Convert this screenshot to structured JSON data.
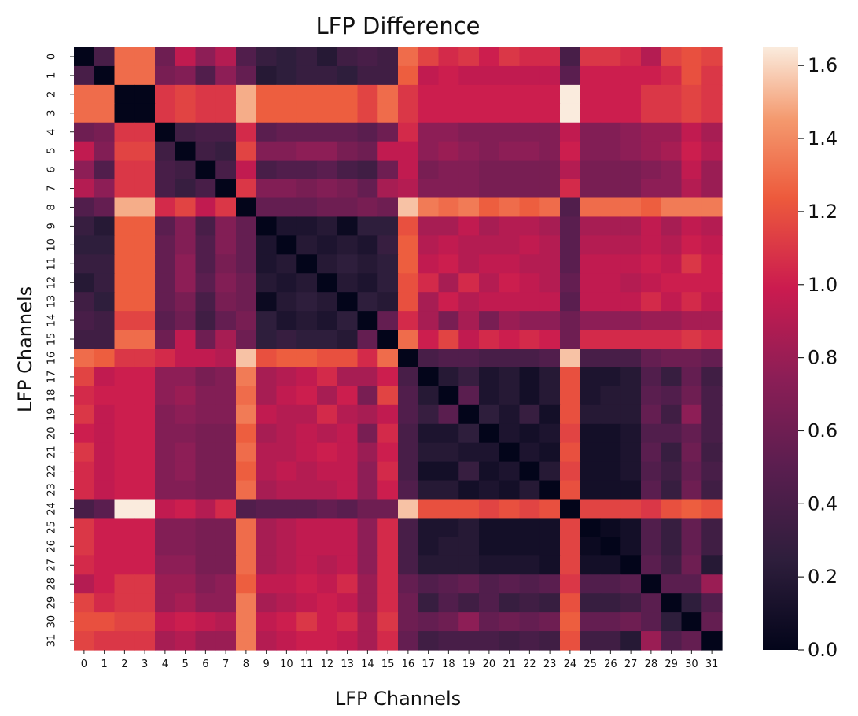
{
  "chart_data": {
    "type": "heatmap",
    "title": "LFP Difference",
    "xlabel": "LFP Channels",
    "ylabel": "LFP Channels",
    "colormap": "rocket",
    "vmin": 0.0,
    "vmax": 1.65,
    "colorbar_ticks": [
      "0.0",
      "0.2",
      "0.4",
      "0.6",
      "0.8",
      "1.0",
      "1.2",
      "1.4",
      "1.6"
    ],
    "colorbar_values": [
      0.0,
      0.2,
      0.4,
      0.6,
      0.8,
      1.0,
      1.2,
      1.4,
      1.6
    ],
    "x_ticks": [
      "0",
      "1",
      "2",
      "3",
      "4",
      "5",
      "6",
      "7",
      "8",
      "9",
      "10",
      "11",
      "12",
      "13",
      "14",
      "15",
      "16",
      "17",
      "18",
      "19",
      "20",
      "21",
      "22",
      "23",
      "24",
      "25",
      "26",
      "27",
      "28",
      "29",
      "30",
      "31"
    ],
    "y_ticks": [
      "0",
      "1",
      "2",
      "3",
      "4",
      "5",
      "6",
      "7",
      "8",
      "9",
      "10",
      "11",
      "12",
      "13",
      "14",
      "15",
      "16",
      "17",
      "18",
      "19",
      "20",
      "21",
      "22",
      "23",
      "24",
      "25",
      "26",
      "27",
      "28",
      "29",
      "30",
      "31"
    ],
    "matrix": [
      [
        0.0,
        0.4,
        1.3,
        1.3,
        0.6,
        0.95,
        0.75,
        0.9,
        0.45,
        0.3,
        0.25,
        0.3,
        0.2,
        0.35,
        0.4,
        0.35,
        1.3,
        1.15,
        1.05,
        1.1,
        1.0,
        1.1,
        1.05,
        1.05,
        0.4,
        1.1,
        1.1,
        1.05,
        0.9,
        1.15,
        1.2,
        1.15
      ],
      [
        0.4,
        0.0,
        1.3,
        1.3,
        0.65,
        0.7,
        0.45,
        0.75,
        0.55,
        0.2,
        0.25,
        0.3,
        0.3,
        0.25,
        0.35,
        0.35,
        1.25,
        0.95,
        1.0,
        0.95,
        0.95,
        0.95,
        0.95,
        0.95,
        0.5,
        1.0,
        1.0,
        1.0,
        1.0,
        1.05,
        1.2,
        1.1
      ],
      [
        1.3,
        1.3,
        0.0,
        0.0,
        1.1,
        1.15,
        1.1,
        1.1,
        1.5,
        1.25,
        1.25,
        1.25,
        1.25,
        1.25,
        1.15,
        1.3,
        1.1,
        1.0,
        1.0,
        1.0,
        1.0,
        1.0,
        1.0,
        1.0,
        1.65,
        1.0,
        1.0,
        1.0,
        1.1,
        1.1,
        1.15,
        1.1
      ],
      [
        1.3,
        1.3,
        0.0,
        0.0,
        1.1,
        1.15,
        1.1,
        1.1,
        1.5,
        1.25,
        1.25,
        1.25,
        1.25,
        1.25,
        1.15,
        1.3,
        1.1,
        1.0,
        1.0,
        1.0,
        1.0,
        1.0,
        1.0,
        1.0,
        1.65,
        1.0,
        1.0,
        1.0,
        1.1,
        1.1,
        1.15,
        1.1
      ],
      [
        0.6,
        0.65,
        1.1,
        1.1,
        0.0,
        0.35,
        0.4,
        0.4,
        1.05,
        0.5,
        0.55,
        0.55,
        0.55,
        0.55,
        0.5,
        0.6,
        1.05,
        0.75,
        0.75,
        0.7,
        0.7,
        0.7,
        0.7,
        0.7,
        0.95,
        0.7,
        0.7,
        0.75,
        0.8,
        0.8,
        0.95,
        0.85
      ],
      [
        0.95,
        0.7,
        1.15,
        1.15,
        0.35,
        0.0,
        0.35,
        0.3,
        1.15,
        0.7,
        0.7,
        0.75,
        0.75,
        0.65,
        0.6,
        0.95,
        0.95,
        0.75,
        0.8,
        0.75,
        0.7,
        0.75,
        0.75,
        0.7,
        1.0,
        0.7,
        0.7,
        0.75,
        0.8,
        0.85,
        1.0,
        0.9
      ],
      [
        0.75,
        0.45,
        1.1,
        1.1,
        0.4,
        0.35,
        0.0,
        0.4,
        0.95,
        0.4,
        0.45,
        0.45,
        0.5,
        0.4,
        0.35,
        0.6,
        0.95,
        0.65,
        0.7,
        0.7,
        0.65,
        0.65,
        0.65,
        0.65,
        0.9,
        0.65,
        0.65,
        0.65,
        0.7,
        0.75,
        0.95,
        0.8
      ],
      [
        0.9,
        0.75,
        1.1,
        1.1,
        0.4,
        0.3,
        0.4,
        0.0,
        1.1,
        0.7,
        0.7,
        0.65,
        0.7,
        0.65,
        0.55,
        0.85,
        0.9,
        0.7,
        0.7,
        0.7,
        0.65,
        0.65,
        0.65,
        0.65,
        1.05,
        0.65,
        0.65,
        0.65,
        0.75,
        0.75,
        0.9,
        0.8
      ],
      [
        0.45,
        0.55,
        1.5,
        1.5,
        1.05,
        1.15,
        0.95,
        1.1,
        0.0,
        0.55,
        0.55,
        0.55,
        0.6,
        0.6,
        0.65,
        0.6,
        1.55,
        1.35,
        1.3,
        1.35,
        1.25,
        1.3,
        1.25,
        1.3,
        0.45,
        1.3,
        1.3,
        1.3,
        1.25,
        1.35,
        1.35,
        1.35
      ],
      [
        0.3,
        0.2,
        1.25,
        1.25,
        0.5,
        0.7,
        0.4,
        0.7,
        0.55,
        0.0,
        0.15,
        0.15,
        0.2,
        0.05,
        0.25,
        0.25,
        1.2,
        0.85,
        0.85,
        0.95,
        0.85,
        0.9,
        0.9,
        0.85,
        0.5,
        0.85,
        0.85,
        0.85,
        0.95,
        0.85,
        0.95,
        0.9
      ],
      [
        0.25,
        0.25,
        1.25,
        1.25,
        0.55,
        0.7,
        0.45,
        0.7,
        0.55,
        0.15,
        0.0,
        0.2,
        0.15,
        0.2,
        0.15,
        0.3,
        1.25,
        0.9,
        0.95,
        0.9,
        0.9,
        0.9,
        0.95,
        0.9,
        0.5,
        0.9,
        0.9,
        0.9,
        0.95,
        0.9,
        1.0,
        0.95
      ],
      [
        0.3,
        0.3,
        1.25,
        1.25,
        0.55,
        0.75,
        0.45,
        0.65,
        0.55,
        0.15,
        0.2,
        0.0,
        0.2,
        0.25,
        0.2,
        0.25,
        1.25,
        0.95,
        1.0,
        0.9,
        0.95,
        0.95,
        0.9,
        0.9,
        0.5,
        0.95,
        0.95,
        0.95,
        1.0,
        0.95,
        1.1,
        1.0
      ],
      [
        0.2,
        0.3,
        1.25,
        1.25,
        0.55,
        0.75,
        0.5,
        0.7,
        0.6,
        0.2,
        0.15,
        0.2,
        0.0,
        0.2,
        0.15,
        0.25,
        1.2,
        1.05,
        0.85,
        1.05,
        0.9,
        1.0,
        0.95,
        0.9,
        0.55,
        0.95,
        0.95,
        0.9,
        0.95,
        1.0,
        1.0,
        1.0
      ],
      [
        0.35,
        0.25,
        1.25,
        1.25,
        0.55,
        0.65,
        0.4,
        0.65,
        0.6,
        0.05,
        0.2,
        0.25,
        0.2,
        0.0,
        0.25,
        0.2,
        1.2,
        0.85,
        1.0,
        0.9,
        0.95,
        0.95,
        0.95,
        0.95,
        0.5,
        0.95,
        0.95,
        0.95,
        1.05,
        0.95,
        1.05,
        0.95
      ],
      [
        0.4,
        0.35,
        1.15,
        1.15,
        0.5,
        0.6,
        0.35,
        0.55,
        0.65,
        0.25,
        0.15,
        0.2,
        0.15,
        0.25,
        0.0,
        0.55,
        1.05,
        0.85,
        0.65,
        0.85,
        0.65,
        0.8,
        0.75,
        0.75,
        0.6,
        0.75,
        0.75,
        0.75,
        0.8,
        0.8,
        0.85,
        0.85
      ],
      [
        0.35,
        0.35,
        1.3,
        1.3,
        0.6,
        0.95,
        0.6,
        0.85,
        0.6,
        0.25,
        0.3,
        0.25,
        0.25,
        0.2,
        0.55,
        0.0,
        1.3,
        1.0,
        1.15,
        0.95,
        1.05,
        1.0,
        1.05,
        1.0,
        0.6,
        1.05,
        1.05,
        1.05,
        1.05,
        1.05,
        1.1,
        1.05
      ],
      [
        1.3,
        1.25,
        1.1,
        1.1,
        1.05,
        0.95,
        0.95,
        0.9,
        1.55,
        1.2,
        1.25,
        1.25,
        1.2,
        1.2,
        1.05,
        1.3,
        0.0,
        0.4,
        0.45,
        0.45,
        0.4,
        0.4,
        0.4,
        0.45,
        1.55,
        0.4,
        0.4,
        0.4,
        0.55,
        0.6,
        0.6,
        0.55
      ],
      [
        1.15,
        0.95,
        1.0,
        1.0,
        0.75,
        0.75,
        0.65,
        0.7,
        1.35,
        0.85,
        0.9,
        0.95,
        1.05,
        0.85,
        0.85,
        1.0,
        0.4,
        0.0,
        0.2,
        0.3,
        0.15,
        0.2,
        0.1,
        0.2,
        1.2,
        0.15,
        0.15,
        0.2,
        0.45,
        0.3,
        0.55,
        0.35
      ],
      [
        1.05,
        1.0,
        1.0,
        1.0,
        0.75,
        0.8,
        0.7,
        0.7,
        1.3,
        0.85,
        0.95,
        1.0,
        0.85,
        1.0,
        0.65,
        1.15,
        0.45,
        0.2,
        0.0,
        0.5,
        0.15,
        0.2,
        0.1,
        0.2,
        1.2,
        0.15,
        0.2,
        0.2,
        0.5,
        0.45,
        0.6,
        0.4
      ],
      [
        1.1,
        0.95,
        1.0,
        1.0,
        0.7,
        0.75,
        0.7,
        0.7,
        1.35,
        0.95,
        0.9,
        0.9,
        1.05,
        0.9,
        0.85,
        0.95,
        0.45,
        0.3,
        0.5,
        0.0,
        0.25,
        0.15,
        0.3,
        0.1,
        1.2,
        0.2,
        0.2,
        0.2,
        0.55,
        0.35,
        0.75,
        0.4
      ],
      [
        1.0,
        0.95,
        1.0,
        1.0,
        0.7,
        0.7,
        0.65,
        0.65,
        1.25,
        0.85,
        0.9,
        0.95,
        0.9,
        0.95,
        0.65,
        1.05,
        0.4,
        0.15,
        0.15,
        0.25,
        0.0,
        0.15,
        0.1,
        0.15,
        1.15,
        0.1,
        0.1,
        0.15,
        0.45,
        0.45,
        0.55,
        0.4
      ],
      [
        1.1,
        0.95,
        1.0,
        1.0,
        0.7,
        0.75,
        0.65,
        0.65,
        1.3,
        0.9,
        0.9,
        0.95,
        1.0,
        0.95,
        0.8,
        1.0,
        0.4,
        0.2,
        0.2,
        0.15,
        0.15,
        0.0,
        0.15,
        0.1,
        1.2,
        0.1,
        0.1,
        0.15,
        0.5,
        0.3,
        0.6,
        0.35
      ],
      [
        1.05,
        0.95,
        1.0,
        1.0,
        0.7,
        0.75,
        0.65,
        0.65,
        1.25,
        0.9,
        0.95,
        0.9,
        0.95,
        0.95,
        0.75,
        1.05,
        0.4,
        0.1,
        0.1,
        0.3,
        0.1,
        0.15,
        0.0,
        0.2,
        1.15,
        0.1,
        0.1,
        0.15,
        0.45,
        0.35,
        0.55,
        0.4
      ],
      [
        1.05,
        0.95,
        1.0,
        1.0,
        0.7,
        0.7,
        0.65,
        0.65,
        1.3,
        0.85,
        0.9,
        0.9,
        0.9,
        0.95,
        0.75,
        1.0,
        0.45,
        0.2,
        0.2,
        0.1,
        0.15,
        0.1,
        0.2,
        0.0,
        1.2,
        0.1,
        0.1,
        0.1,
        0.5,
        0.3,
        0.6,
        0.35
      ],
      [
        0.4,
        0.5,
        1.65,
        1.65,
        0.95,
        1.0,
        0.9,
        1.05,
        0.45,
        0.5,
        0.5,
        0.5,
        0.55,
        0.5,
        0.6,
        0.6,
        1.55,
        1.2,
        1.2,
        1.2,
        1.15,
        1.2,
        1.15,
        1.2,
        0.0,
        1.15,
        1.15,
        1.15,
        1.1,
        1.2,
        1.25,
        1.2
      ],
      [
        1.1,
        1.0,
        1.0,
        1.0,
        0.7,
        0.7,
        0.65,
        0.65,
        1.3,
        0.85,
        0.9,
        0.95,
        0.95,
        0.95,
        0.75,
        1.05,
        0.4,
        0.15,
        0.15,
        0.2,
        0.1,
        0.1,
        0.1,
        0.1,
        1.15,
        0.0,
        0.05,
        0.1,
        0.45,
        0.3,
        0.55,
        0.35
      ],
      [
        1.1,
        1.0,
        1.0,
        1.0,
        0.7,
        0.7,
        0.65,
        0.65,
        1.3,
        0.85,
        0.9,
        0.95,
        0.95,
        0.95,
        0.75,
        1.05,
        0.4,
        0.15,
        0.2,
        0.2,
        0.1,
        0.1,
        0.1,
        0.1,
        1.15,
        0.05,
        0.0,
        0.1,
        0.45,
        0.3,
        0.55,
        0.35
      ],
      [
        1.05,
        1.0,
        1.0,
        1.0,
        0.75,
        0.75,
        0.65,
        0.65,
        1.3,
        0.85,
        0.9,
        0.95,
        0.9,
        0.95,
        0.75,
        1.05,
        0.4,
        0.2,
        0.2,
        0.2,
        0.15,
        0.15,
        0.15,
        0.1,
        1.15,
        0.1,
        0.1,
        0.0,
        0.5,
        0.35,
        0.6,
        0.2
      ],
      [
        0.9,
        1.0,
        1.1,
        1.1,
        0.8,
        0.8,
        0.7,
        0.75,
        1.25,
        0.95,
        0.95,
        1.0,
        0.95,
        1.05,
        0.8,
        1.05,
        0.55,
        0.45,
        0.5,
        0.55,
        0.45,
        0.5,
        0.45,
        0.5,
        1.1,
        0.45,
        0.45,
        0.5,
        0.0,
        0.5,
        0.5,
        0.8
      ],
      [
        1.15,
        1.05,
        1.1,
        1.1,
        0.8,
        0.85,
        0.75,
        0.75,
        1.35,
        0.85,
        0.9,
        0.95,
        1.0,
        0.95,
        0.8,
        1.05,
        0.6,
        0.3,
        0.45,
        0.35,
        0.45,
        0.3,
        0.35,
        0.3,
        1.2,
        0.3,
        0.3,
        0.35,
        0.5,
        0.0,
        0.25,
        0.45
      ],
      [
        1.2,
        1.2,
        1.15,
        1.15,
        0.95,
        1.0,
        0.95,
        0.9,
        1.35,
        0.95,
        1.0,
        1.1,
        1.0,
        1.05,
        0.85,
        1.1,
        0.6,
        0.55,
        0.6,
        0.75,
        0.55,
        0.6,
        0.55,
        0.6,
        1.25,
        0.55,
        0.55,
        0.6,
        0.5,
        0.25,
        0.0,
        0.55
      ],
      [
        1.15,
        1.1,
        1.1,
        1.1,
        0.85,
        0.9,
        0.8,
        0.8,
        1.35,
        0.9,
        0.95,
        1.0,
        1.0,
        0.95,
        0.85,
        1.05,
        0.55,
        0.35,
        0.4,
        0.4,
        0.4,
        0.35,
        0.4,
        0.35,
        1.2,
        0.35,
        0.35,
        0.2,
        0.8,
        0.45,
        0.55,
        0.0
      ]
    ]
  }
}
